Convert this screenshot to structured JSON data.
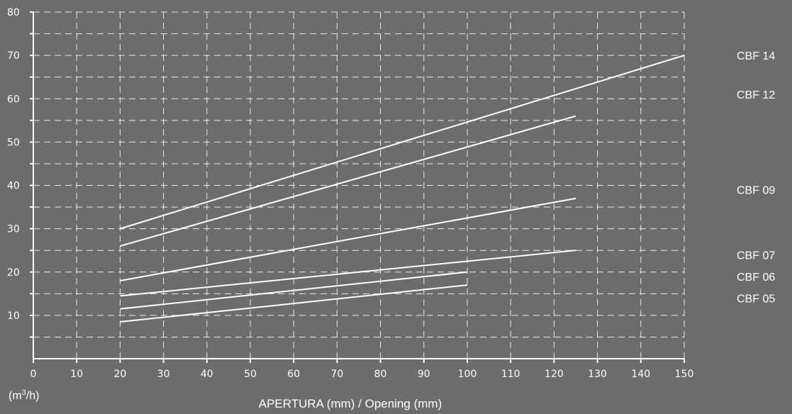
{
  "chart_data": {
    "type": "line",
    "xlabel": "APERTURA (mm) / Opening (mm)",
    "ylabel_unit": {
      "before": "(m",
      "sup": "3",
      "after": "/h)"
    },
    "xlim": [
      0,
      150
    ],
    "ylim": [
      0,
      80
    ],
    "x_ticks": [
      0,
      10,
      20,
      30,
      40,
      50,
      60,
      70,
      80,
      90,
      100,
      110,
      120,
      130,
      140,
      150
    ],
    "y_ticks": [
      10,
      20,
      30,
      40,
      50,
      60,
      70,
      80
    ],
    "grid": "dashed",
    "legend": "right",
    "colors": {
      "background": "#6b6c6e",
      "foreground": "#ffffff"
    },
    "series": [
      {
        "name": "CBF 14",
        "x": [
          20,
          150
        ],
        "y": [
          30,
          70
        ],
        "label_y": 70
      },
      {
        "name": "CBF 12",
        "x": [
          20,
          125
        ],
        "y": [
          26,
          56
        ],
        "label_y": 61
      },
      {
        "name": "CBF 09",
        "x": [
          20,
          125
        ],
        "y": [
          18,
          37
        ],
        "label_y": 39
      },
      {
        "name": "CBF 07",
        "x": [
          20,
          125
        ],
        "y": [
          14.5,
          25
        ],
        "label_y": 24
      },
      {
        "name": "CBF 06",
        "x": [
          20,
          100
        ],
        "y": [
          11.5,
          20
        ],
        "label_y": 19
      },
      {
        "name": "CBF 05",
        "x": [
          20,
          100
        ],
        "y": [
          8.5,
          17
        ],
        "label_y": 14
      }
    ]
  }
}
